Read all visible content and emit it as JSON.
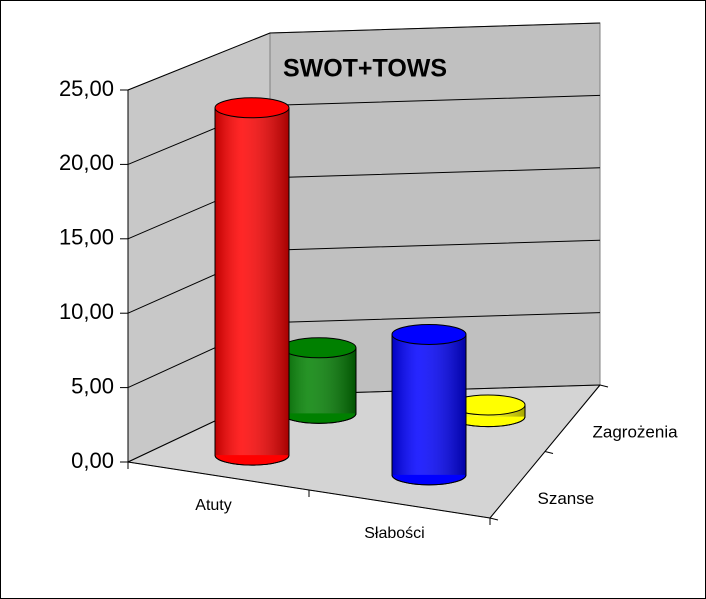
{
  "chart_data": {
    "type": "bar3d",
    "title": "SWOT+TOWS",
    "categories": [
      "Atuty",
      "Słabości"
    ],
    "series": [
      {
        "name": "Szanse",
        "colors": [
          "#ff0000",
          "#0000ff"
        ],
        "values": [
          23.5,
          9.5
        ]
      },
      {
        "name": "Zagrożenia",
        "colors": [
          "#008000",
          "#ffff00"
        ],
        "values": [
          4.5,
          0.8
        ]
      }
    ],
    "ylim": [
      0,
      25
    ],
    "yticks": [
      {
        "value": 0,
        "label": "0,00"
      },
      {
        "value": 5,
        "label": "5,00"
      },
      {
        "value": 10,
        "label": "10,00"
      },
      {
        "value": 15,
        "label": "15,00"
      },
      {
        "value": 20,
        "label": "20,00"
      },
      {
        "value": 25,
        "label": "25,00"
      }
    ],
    "grid": true
  }
}
